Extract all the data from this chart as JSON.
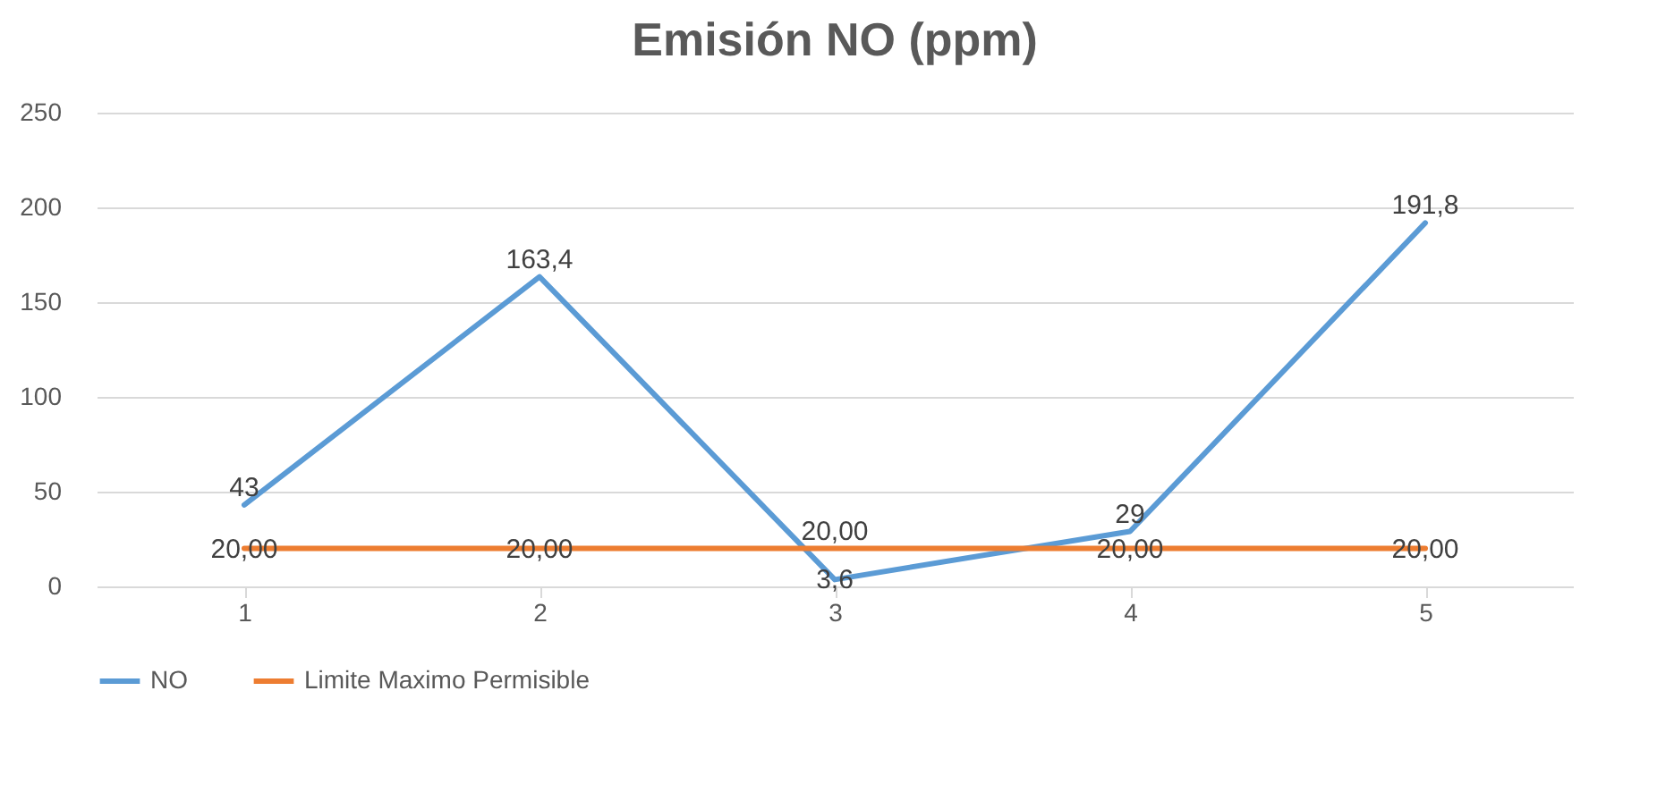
{
  "chart_data": {
    "type": "line",
    "title": "Emisión NO (ppm)",
    "categories": [
      "1",
      "2",
      "3",
      "4",
      "5"
    ],
    "series": [
      {
        "name": "NO",
        "color": "#5b9bd5",
        "values": [
          43,
          163.4,
          3.6,
          29,
          191.8
        ],
        "value_labels": [
          "43",
          "163,4",
          "3,6",
          "29",
          "191,8"
        ]
      },
      {
        "name": "Limite Maximo Permisible",
        "color": "#ed7d31",
        "values": [
          20,
          20,
          20,
          20,
          20
        ],
        "value_labels": [
          "20,00",
          "20,00",
          "20,00",
          "20,00",
          "20,00"
        ]
      }
    ],
    "ylim": [
      0,
      250
    ],
    "yticks": [
      0,
      50,
      100,
      150,
      200,
      250
    ],
    "grid": "y",
    "legend": "bottom",
    "marker": "none",
    "line_style": "solid"
  }
}
